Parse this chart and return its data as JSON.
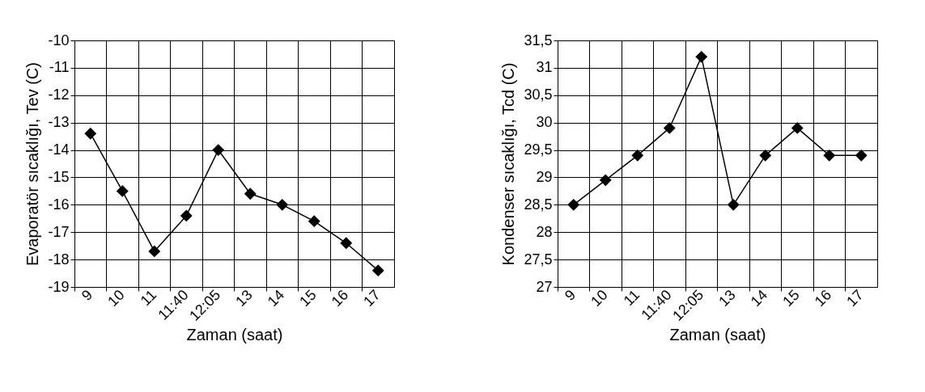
{
  "chart_data": [
    {
      "type": "line",
      "xlabel": "Zaman (saat)",
      "ylabel": "Evaporatör sıcaklığı, Tev (C)",
      "categories": [
        "9",
        "10",
        "11",
        "11:40",
        "12:05",
        "13",
        "14",
        "15",
        "16",
        "17"
      ],
      "series": [
        {
          "color": "#000000",
          "values": [
            -13.4,
            -15.5,
            -17.7,
            -16.4,
            -14.0,
            -15.6,
            -16.0,
            -16.6,
            -17.4,
            -18.4
          ]
        }
      ],
      "ylim": [
        -19,
        -10
      ],
      "yticks": [
        -19,
        -18,
        -17,
        -16,
        -15,
        -14,
        -13,
        -12,
        -11,
        -10
      ],
      "grid": true,
      "marker": "diamond",
      "line_style": "solid"
    },
    {
      "type": "line",
      "xlabel": "Zaman (saat)",
      "ylabel": "Kondenser sıcaklığı, Tcd (C)",
      "categories": [
        "9",
        "10",
        "11",
        "11:40",
        "12:05",
        "13",
        "14",
        "15",
        "16",
        "17"
      ],
      "series": [
        {
          "color": "#000000",
          "values": [
            28.5,
            28.95,
            29.4,
            29.9,
            31.2,
            28.5,
            29.4,
            29.9,
            29.4,
            29.4
          ]
        }
      ],
      "ylim": [
        27,
        31.5
      ],
      "yticks": [
        27,
        {
          "value": 27.5,
          "label": "27,5"
        },
        28,
        {
          "value": 28.5,
          "label": "28,5"
        },
        29,
        {
          "value": 29.5,
          "label": "29,5"
        },
        30,
        {
          "value": 30.5,
          "label": "30,5"
        },
        31,
        {
          "value": 31.5,
          "label": "31,5"
        }
      ],
      "grid": true,
      "marker": "diamond",
      "line_style": "solid"
    }
  ]
}
